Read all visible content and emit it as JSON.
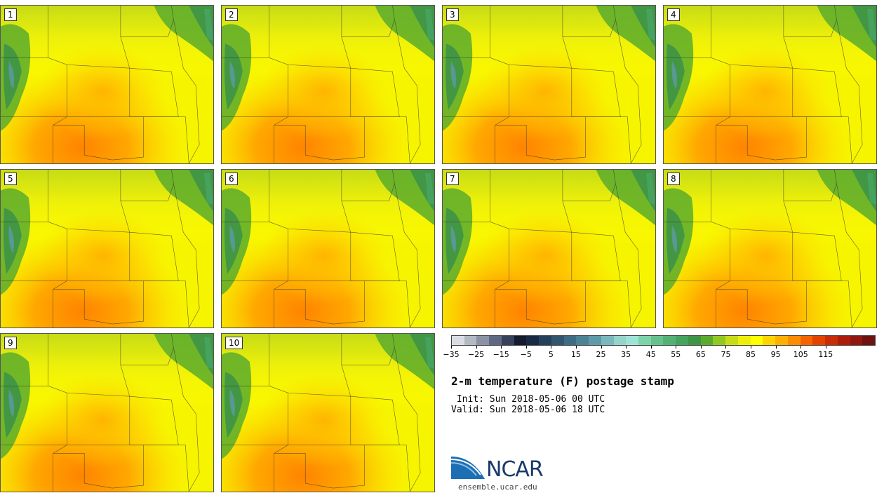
{
  "panels": [
    {
      "label": "1"
    },
    {
      "label": "2"
    },
    {
      "label": "3"
    },
    {
      "label": "4"
    },
    {
      "label": "5"
    },
    {
      "label": "6"
    },
    {
      "label": "7"
    },
    {
      "label": "8"
    },
    {
      "label": "9"
    },
    {
      "label": "10"
    }
  ],
  "colorbar": {
    "colors": [
      "#d9dde3",
      "#b3b8c2",
      "#8b92a3",
      "#5f6a82",
      "#38415a",
      "#141c2e",
      "#1a2a44",
      "#25405a",
      "#315670",
      "#3d6c84",
      "#4b8296",
      "#5e9aa8",
      "#79b8bb",
      "#95d3cb",
      "#9fe3d6",
      "#7dd4a8",
      "#66c28c",
      "#54b176",
      "#46a35f",
      "#3e9447",
      "#5aab2d",
      "#92c822",
      "#c6dc16",
      "#ecef0a",
      "#ffff00",
      "#ffd400",
      "#ffb000",
      "#ff8c00",
      "#f56400",
      "#e24400",
      "#c92c08",
      "#ad1e0a",
      "#901810",
      "#6e1212"
    ],
    "tick_labels": [
      "−35",
      "−25",
      "−15",
      "−5",
      "5",
      "15",
      "25",
      "35",
      "45",
      "55",
      "65",
      "75",
      "85",
      "95",
      "105",
      "115"
    ]
  },
  "title": "2-m temperature (F) postage stamp",
  "init_line": " Init: Sun 2018-05-06 00 UTC",
  "valid_line": "Valid: Sun 2018-05-06 18 UTC",
  "logo": {
    "text": "NCAR",
    "url": "ensemble.ucar.edu"
  }
}
